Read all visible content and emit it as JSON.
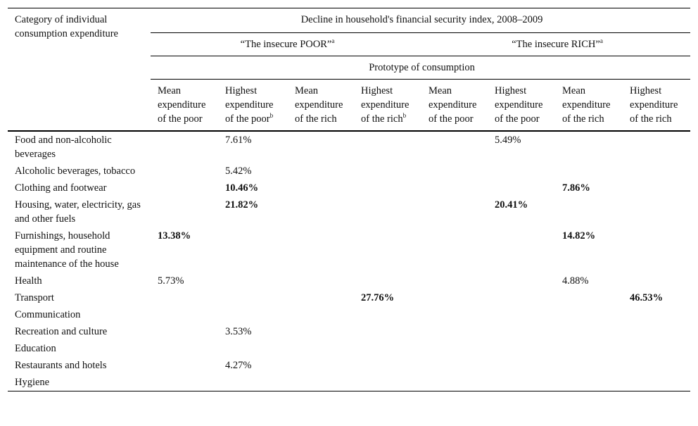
{
  "header": {
    "category_label": "Category of individual consumption expenditure",
    "index_title": "Decline in household's financial security index, 2008–2009",
    "group_poor": "“The insecure POOR”",
    "group_rich": "“The insecure RICH”",
    "group_sup": "a",
    "prototype": "Prototype of consumption",
    "columns": [
      {
        "label": "Mean expenditure of the poor",
        "sup": ""
      },
      {
        "label": "Highest expenditure of the poor",
        "sup": "b"
      },
      {
        "label": "Mean expenditure of the rich",
        "sup": ""
      },
      {
        "label": "Highest expenditure of the rich",
        "sup": "b"
      },
      {
        "label": "Mean expenditure of the poor",
        "sup": ""
      },
      {
        "label": "Highest expenditure of the poor",
        "sup": ""
      },
      {
        "label": "Mean expenditure of the rich",
        "sup": ""
      },
      {
        "label": "Highest expenditure of the rich",
        "sup": ""
      }
    ]
  },
  "rows": [
    {
      "category": "Food and non-alcoholic beverages",
      "cells": [
        "",
        "7.61%",
        "",
        "",
        "",
        "5.49%",
        "",
        ""
      ],
      "bold": [
        false,
        false,
        false,
        false,
        false,
        false,
        false,
        false
      ]
    },
    {
      "category": "Alcoholic beverages, tobacco",
      "cells": [
        "",
        "5.42%",
        "",
        "",
        "",
        "",
        "",
        ""
      ],
      "bold": [
        false,
        false,
        false,
        false,
        false,
        false,
        false,
        false
      ]
    },
    {
      "category": "Clothing and footwear",
      "cells": [
        "",
        "10.46%",
        "",
        "",
        "",
        "",
        "7.86%",
        ""
      ],
      "bold": [
        false,
        true,
        false,
        false,
        false,
        false,
        true,
        false
      ]
    },
    {
      "category": "Housing, water, electricity, gas and other fuels",
      "cells": [
        "",
        "21.82%",
        "",
        "",
        "",
        "20.41%",
        "",
        ""
      ],
      "bold": [
        false,
        true,
        false,
        false,
        false,
        true,
        false,
        false
      ]
    },
    {
      "category": "Furnishings, household equipment and routine maintenance of the house",
      "cells": [
        "13.38%",
        "",
        "",
        "",
        "",
        "",
        "14.82%",
        ""
      ],
      "bold": [
        true,
        false,
        false,
        false,
        false,
        false,
        true,
        false
      ]
    },
    {
      "category": "Health",
      "cells": [
        "5.73%",
        "",
        "",
        "",
        "",
        "",
        "4.88%",
        ""
      ],
      "bold": [
        false,
        false,
        false,
        false,
        false,
        false,
        false,
        false
      ]
    },
    {
      "category": "Transport",
      "cells": [
        "",
        "",
        "",
        "27.76%",
        "",
        "",
        "",
        "46.53%"
      ],
      "bold": [
        false,
        false,
        false,
        true,
        false,
        false,
        false,
        true
      ]
    },
    {
      "category": "Communication",
      "cells": [
        "",
        "",
        "",
        "",
        "",
        "",
        "",
        ""
      ],
      "bold": [
        false,
        false,
        false,
        false,
        false,
        false,
        false,
        false
      ]
    },
    {
      "category": "Recreation and culture",
      "cells": [
        "",
        "3.53%",
        "",
        "",
        "",
        "",
        "",
        ""
      ],
      "bold": [
        false,
        false,
        false,
        false,
        false,
        false,
        false,
        false
      ]
    },
    {
      "category": "Education",
      "cells": [
        "",
        "",
        "",
        "",
        "",
        "",
        "",
        ""
      ],
      "bold": [
        false,
        false,
        false,
        false,
        false,
        false,
        false,
        false
      ]
    },
    {
      "category": "Restaurants and hotels",
      "cells": [
        "",
        "4.27%",
        "",
        "",
        "",
        "",
        "",
        ""
      ],
      "bold": [
        false,
        false,
        false,
        false,
        false,
        false,
        false,
        false
      ]
    },
    {
      "category": "Hygiene",
      "cells": [
        "",
        "",
        "",
        "",
        "",
        "",
        "",
        ""
      ],
      "bold": [
        false,
        false,
        false,
        false,
        false,
        false,
        false,
        false
      ]
    }
  ]
}
